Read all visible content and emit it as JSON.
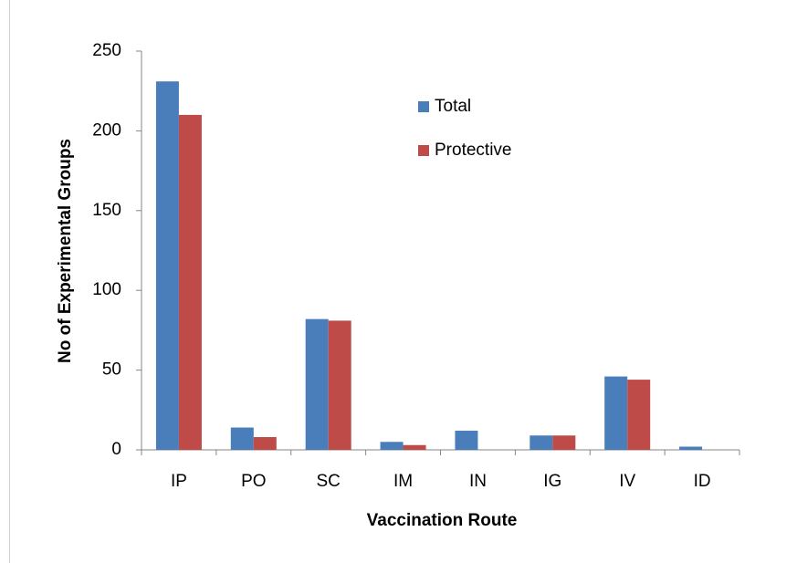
{
  "chart_data": {
    "type": "bar",
    "categories": [
      "IP",
      "PO",
      "SC",
      "IM",
      "IN",
      "IG",
      "IV",
      "ID"
    ],
    "series": [
      {
        "name": "Total",
        "color": "#4a7ebb",
        "values": [
          231,
          14,
          82,
          5,
          12,
          9,
          46,
          2
        ]
      },
      {
        "name": "Protective",
        "color": "#be4b48",
        "values": [
          210,
          8,
          81,
          3,
          0,
          9,
          44,
          0
        ]
      }
    ],
    "x_label": "Vaccination Route",
    "y_label": "No of Experimental Groups",
    "ylim": [
      0,
      250
    ],
    "yticks": [
      0,
      50,
      100,
      150,
      200,
      250
    ],
    "grid": false,
    "legend": "top"
  }
}
